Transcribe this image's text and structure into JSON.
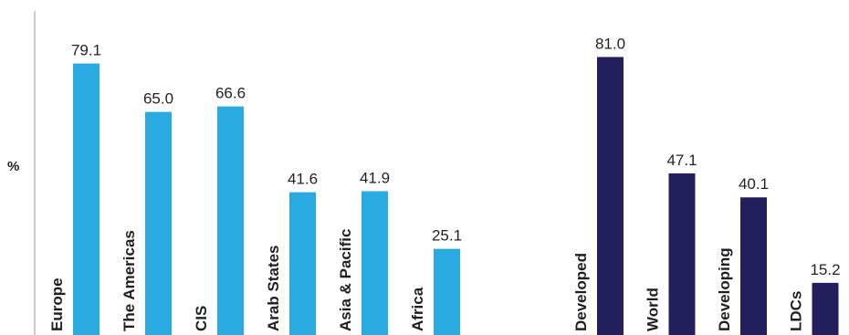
{
  "chart_data": {
    "type": "bar",
    "ylabel": "%",
    "ylim": [
      0,
      90
    ],
    "grid": false,
    "value_labels": true,
    "series": [
      {
        "color": "#29abe2",
        "categories": [
          "Europe",
          "The Americas",
          "CIS",
          "Arab States",
          "Asia & Pacific",
          "Africa"
        ],
        "values": [
          79.1,
          65.0,
          66.6,
          41.6,
          41.9,
          25.1
        ],
        "value_labels": [
          "79.1",
          "65.0",
          "66.6",
          "41.6",
          "41.9",
          "25.1"
        ]
      },
      {
        "color": "#231f5c",
        "categories": [
          "Developed",
          "World",
          "Developing",
          "LDCs"
        ],
        "values": [
          81.0,
          47.1,
          40.1,
          15.2
        ],
        "value_labels": [
          "81.0",
          "47.1",
          "40.1",
          "15.2"
        ]
      }
    ]
  }
}
